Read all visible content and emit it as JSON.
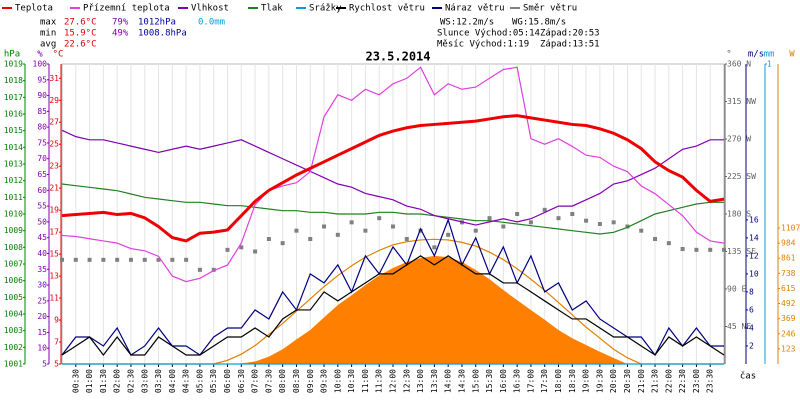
{
  "chart_data": {
    "type": "line",
    "title": "23.5.2014",
    "x_label": "čas",
    "grid": true,
    "xlim": [
      0,
      24
    ],
    "xticks": [
      {
        "value": 0.5,
        "label": "00:30"
      },
      {
        "value": 1,
        "label": "01:00"
      },
      {
        "value": 1.5,
        "label": "01:30"
      },
      {
        "value": 2,
        "label": "02:00"
      },
      {
        "value": 2.5,
        "label": "02:30"
      },
      {
        "value": 3,
        "label": "03:00"
      },
      {
        "value": 3.5,
        "label": "03:30"
      },
      {
        "value": 4,
        "label": "04:00"
      },
      {
        "value": 4.5,
        "label": "04:30"
      },
      {
        "value": 5,
        "label": "05:00"
      },
      {
        "value": 5.5,
        "label": "05:30"
      },
      {
        "value": 6,
        "label": "06:00"
      },
      {
        "value": 6.5,
        "label": "06:30"
      },
      {
        "value": 7,
        "label": "07:00"
      },
      {
        "value": 7.5,
        "label": "07:30"
      },
      {
        "value": 8,
        "label": "08:00"
      },
      {
        "value": 8.5,
        "label": "08:30"
      },
      {
        "value": 9,
        "label": "09:00"
      },
      {
        "value": 9.5,
        "label": "09:30"
      },
      {
        "value": 10,
        "label": "10:00"
      },
      {
        "value": 10.5,
        "label": "10:30"
      },
      {
        "value": 11,
        "label": "11:00"
      },
      {
        "value": 11.5,
        "label": "11:30"
      },
      {
        "value": 12,
        "label": "12:00"
      },
      {
        "value": 12.5,
        "label": "12:30"
      },
      {
        "value": 13,
        "label": "13:00"
      },
      {
        "value": 13.5,
        "label": "13:30"
      },
      {
        "value": 14,
        "label": "14:00"
      },
      {
        "value": 14.5,
        "label": "14:30"
      },
      {
        "value": 15,
        "label": "15:00"
      },
      {
        "value": 15.5,
        "label": "15:30"
      },
      {
        "value": 16,
        "label": "16:00"
      },
      {
        "value": 16.5,
        "label": "16:30"
      },
      {
        "value": 17,
        "label": "17:00"
      },
      {
        "value": 17.5,
        "label": "17:30"
      },
      {
        "value": 18,
        "label": "18:00"
      },
      {
        "value": 18.5,
        "label": "18:30"
      },
      {
        "value": 19,
        "label": "19:00"
      },
      {
        "value": 19.5,
        "label": "19:30"
      },
      {
        "value": 20,
        "label": "20:00"
      },
      {
        "value": 20.5,
        "label": "20:30"
      },
      {
        "value": 21,
        "label": "21:00"
      },
      {
        "value": 21.5,
        "label": "21:30"
      },
      {
        "value": 22,
        "label": "22:00"
      },
      {
        "value": 22.5,
        "label": "22:30"
      },
      {
        "value": 23,
        "label": "23:00"
      },
      {
        "value": 23.5,
        "label": "23:30"
      }
    ],
    "x": [
      0,
      0.5,
      1,
      1.5,
      2,
      2.5,
      3,
      3.5,
      4,
      4.5,
      5,
      5.5,
      6,
      6.5,
      7,
      7.5,
      8,
      8.5,
      9,
      9.5,
      10,
      10.5,
      11,
      11.5,
      12,
      12.5,
      13,
      13.5,
      14,
      14.5,
      15,
      15.5,
      16,
      16.5,
      17,
      17.5,
      18,
      18.5,
      19,
      19.5,
      20,
      20.5,
      21,
      21.5,
      22,
      22.5,
      23,
      23.5,
      24
    ],
    "axes": [
      {
        "label": "hPa",
        "color": "#008000",
        "ylim": [
          1001,
          1019
        ],
        "yticks": [
          1001,
          1002,
          1003,
          1004,
          1005,
          1006,
          1007,
          1008,
          1009,
          1010,
          1011,
          1012,
          1013,
          1014,
          1015,
          1016,
          1017,
          1018,
          1019
        ]
      },
      {
        "label": "%",
        "color": "#8000b0",
        "ylim": [
          5,
          100
        ],
        "yticks": [
          5,
          10,
          15,
          20,
          25,
          30,
          35,
          40,
          45,
          50,
          55,
          60,
          65,
          70,
          75,
          80,
          85,
          90,
          95,
          100
        ]
      },
      {
        "label": "°C",
        "color": "#e00000",
        "ylim": [
          5,
          32.3
        ],
        "yticks": [
          5,
          7,
          9,
          11,
          13,
          15,
          17,
          19,
          21,
          23,
          25,
          27,
          29,
          31
        ]
      },
      {
        "label": "°",
        "color": "#606060",
        "ylim": [
          0,
          360
        ],
        "yticks": [
          {
            "value": 45,
            "label": "45 NE"
          },
          {
            "value": 90,
            "label": "90 E"
          },
          {
            "value": 135,
            "label": "135 SE"
          },
          {
            "value": 180,
            "label": "180 S"
          },
          {
            "value": 225,
            "label": "225 SW"
          },
          {
            "value": 270,
            "label": "270 W"
          },
          {
            "value": 315,
            "label": "315 NW"
          },
          {
            "value": 360,
            "label": "360 N"
          }
        ]
      },
      {
        "label": "m/s",
        "color": "#000080",
        "ylim": [
          0,
          33.3
        ],
        "yticks": [
          2,
          4,
          6,
          8,
          10,
          12,
          14,
          16
        ]
      },
      {
        "label": "mm",
        "color": "#00a0e0",
        "ylim": [
          0,
          1
        ],
        "yticks": [
          1
        ]
      },
      {
        "label": "W",
        "color": "#e08000",
        "ylim": [
          0,
          2442
        ],
        "yticks": [
          123,
          246,
          369,
          492,
          615,
          738,
          861,
          984,
          1107
        ]
      }
    ],
    "series": [
      {
        "color": "#ff8000",
        "type": "area",
        "axis": 6,
        "values": [
          0,
          0,
          0,
          0,
          0,
          0,
          0,
          0,
          0,
          0,
          0,
          0,
          0,
          5,
          20,
          60,
          120,
          200,
          277,
          380,
          480,
          560,
          643,
          720,
          781,
          830,
          863,
          880,
          870,
          830,
          765,
          690,
          602,
          520,
          440,
          360,
          277,
          210,
          155,
          100,
          49,
          0,
          0,
          0,
          0,
          0,
          0,
          0,
          0
        ]
      },
      {
        "color": "#e08000",
        "type": "line",
        "axis": 6,
        "values": [
          0,
          0,
          0,
          0,
          0,
          0,
          0,
          0,
          0,
          0,
          0,
          0,
          30,
          80,
          150,
          240,
          330,
          430,
          530,
          630,
          720,
          800,
          870,
          925,
          970,
          995,
          1010,
          1015,
          1010,
          990,
          960,
          910,
          850,
          775,
          690,
          600,
          500,
          400,
          300,
          210,
          120,
          50,
          0,
          0,
          0,
          0,
          0,
          0,
          0
        ]
      },
      {
        "name": "Směr větru",
        "color": "#808080",
        "type": "scatter",
        "axis": 3,
        "values": [
          125,
          125,
          125,
          125,
          125,
          125,
          125,
          125,
          125,
          125,
          113,
          113,
          137,
          140,
          135,
          150,
          145,
          160,
          150,
          165,
          155,
          170,
          160,
          175,
          165,
          150,
          160,
          140,
          155,
          170,
          160,
          175,
          165,
          180,
          170,
          185,
          175,
          180,
          172,
          168,
          170,
          165,
          160,
          150,
          145,
          138,
          137,
          137,
          137
        ]
      },
      {
        "name": "Srážky",
        "color": "#00a0e0",
        "type": "line",
        "axis": 5,
        "values": [
          0,
          0,
          0,
          0,
          0,
          0,
          0,
          0,
          0,
          0,
          0,
          0,
          0,
          0,
          0,
          0,
          0,
          0,
          0,
          0,
          0,
          0,
          0,
          0,
          0,
          0,
          0,
          0,
          0,
          0,
          0,
          0,
          0,
          0,
          0,
          0,
          0,
          0,
          0,
          0,
          0,
          0,
          0,
          0,
          0,
          0,
          0,
          0,
          0
        ]
      },
      {
        "name": "Tlak",
        "color": "#208020",
        "type": "line",
        "axis": 0,
        "values": [
          1011.8,
          1011.7,
          1011.6,
          1011.5,
          1011.4,
          1011.2,
          1011.0,
          1010.9,
          1010.8,
          1010.7,
          1010.7,
          1010.6,
          1010.5,
          1010.5,
          1010.4,
          1010.3,
          1010.2,
          1010.2,
          1010.1,
          1010.1,
          1010.0,
          1010.0,
          1010.0,
          1010.1,
          1010.1,
          1010.0,
          1010.0,
          1009.9,
          1009.8,
          1009.7,
          1009.6,
          1009.6,
          1009.5,
          1009.4,
          1009.3,
          1009.2,
          1009.1,
          1009.0,
          1008.9,
          1008.8,
          1008.9,
          1009.2,
          1009.6,
          1010.0,
          1010.2,
          1010.4,
          1010.6,
          1010.7,
          1010.7
        ]
      },
      {
        "name": "Vlhkost",
        "color": "#8000b0",
        "type": "line",
        "axis": 1,
        "values": [
          79,
          77,
          76,
          76,
          75,
          74,
          73,
          72,
          73,
          74,
          73,
          74,
          75,
          76,
          74,
          72,
          70,
          68,
          66,
          64,
          62,
          61,
          59,
          58,
          57,
          55,
          54,
          52,
          51,
          50,
          49,
          50,
          51,
          50,
          51,
          53,
          55,
          55,
          57,
          59,
          62,
          63,
          65,
          67,
          70,
          73,
          74,
          76,
          76
        ]
      },
      {
        "name": "Přízemní teplota",
        "color": "#e040e0",
        "type": "line",
        "axis": 2,
        "values": [
          16.7,
          16.6,
          16.4,
          16.2,
          16.0,
          15.5,
          15.3,
          14.8,
          13.0,
          12.5,
          12.8,
          13.5,
          14.0,
          16.0,
          19.5,
          20.8,
          21.2,
          21.5,
          22.5,
          27.5,
          29.5,
          29.0,
          30.0,
          29.5,
          30.5,
          31.0,
          32.0,
          29.5,
          30.5,
          30.0,
          30.2,
          31.0,
          31.8,
          32.0,
          25.5,
          25.0,
          25.5,
          24.8,
          24.0,
          23.8,
          23.0,
          22.5,
          21.2,
          20.5,
          19.5,
          18.5,
          17.0,
          16.2,
          16.0
        ]
      },
      {
        "name": "Teplota",
        "color": "#ee0000",
        "type": "line",
        "width": 3,
        "axis": 2,
        "values": [
          18.5,
          18.6,
          18.7,
          18.8,
          18.6,
          18.7,
          18.3,
          17.5,
          16.5,
          16.2,
          16.9,
          17.0,
          17.2,
          18.5,
          19.8,
          20.8,
          21.5,
          22.2,
          22.8,
          23.4,
          24.0,
          24.6,
          25.2,
          25.8,
          26.2,
          26.5,
          26.7,
          26.8,
          26.9,
          27.0,
          27.1,
          27.3,
          27.5,
          27.6,
          27.4,
          27.2,
          27.0,
          26.8,
          26.7,
          26.4,
          26.0,
          25.4,
          24.6,
          23.4,
          22.6,
          22.0,
          20.8,
          19.8,
          20.0
        ]
      },
      {
        "name": "Náraz větru",
        "color": "#000080",
        "type": "line",
        "axis": 4,
        "values": [
          1,
          3,
          3,
          2,
          4,
          1,
          2,
          4,
          2,
          2,
          1,
          3,
          4,
          4,
          6,
          5,
          8,
          6,
          10,
          9,
          11,
          8,
          12,
          10,
          13,
          11,
          15,
          12,
          16,
          11,
          14,
          10,
          13,
          9,
          12,
          8,
          9,
          6,
          7,
          5,
          4,
          3,
          3,
          1,
          4,
          2,
          4,
          2,
          2
        ]
      },
      {
        "name": "Rychlost větru",
        "color": "#000000",
        "type": "line",
        "axis": 4,
        "values": [
          1,
          2,
          3,
          1,
          3,
          1,
          1,
          3,
          2,
          1,
          1,
          2,
          3,
          3,
          4,
          3,
          5,
          6,
          6,
          8,
          7,
          8,
          9,
          10,
          10,
          11,
          12,
          11,
          12,
          11,
          10,
          10,
          9,
          9,
          8,
          7,
          6,
          5,
          5,
          4,
          3,
          3,
          2,
          1,
          3,
          2,
          3,
          2,
          1
        ]
      }
    ],
    "legend": [
      "Teplota",
      "Přízemní teplota",
      "Vlhkost",
      "Tlak",
      "Srážky",
      "Rychlost větru",
      "Náraz větru",
      "Směr větru"
    ],
    "annotations": [
      {
        "text": "max",
        "color": "#000000"
      },
      {
        "text": "27.6°C",
        "color": "#e00000"
      },
      {
        "text": "79%",
        "color": "#8000b0"
      },
      {
        "text": "1012hPa",
        "color": "#0000a0"
      },
      {
        "text": "0.0mm",
        "color": "#00a0e0"
      },
      {
        "text": "min",
        "color": "#000000"
      },
      {
        "text": "15.9°C",
        "color": "#e00000"
      },
      {
        "text": "49%",
        "color": "#8000b0"
      },
      {
        "text": "1008.8hPa",
        "color": "#0000a0"
      },
      {
        "text": "avg",
        "color": "#000000"
      },
      {
        "text": "22.6°C",
        "color": "#e00000"
      },
      {
        "text": "WS:12.2m/s",
        "color": "#000000"
      },
      {
        "text": "WG:15.8m/s",
        "color": "#000000"
      },
      {
        "text": "Slunce Východ:05:14",
        "color": "#000000"
      },
      {
        "text": "Západ:20:53",
        "color": "#000000"
      },
      {
        "text": "Měsíc Východ:1:19",
        "color": "#000000"
      },
      {
        "text": "Západ:13:51",
        "color": "#000000"
      }
    ]
  }
}
